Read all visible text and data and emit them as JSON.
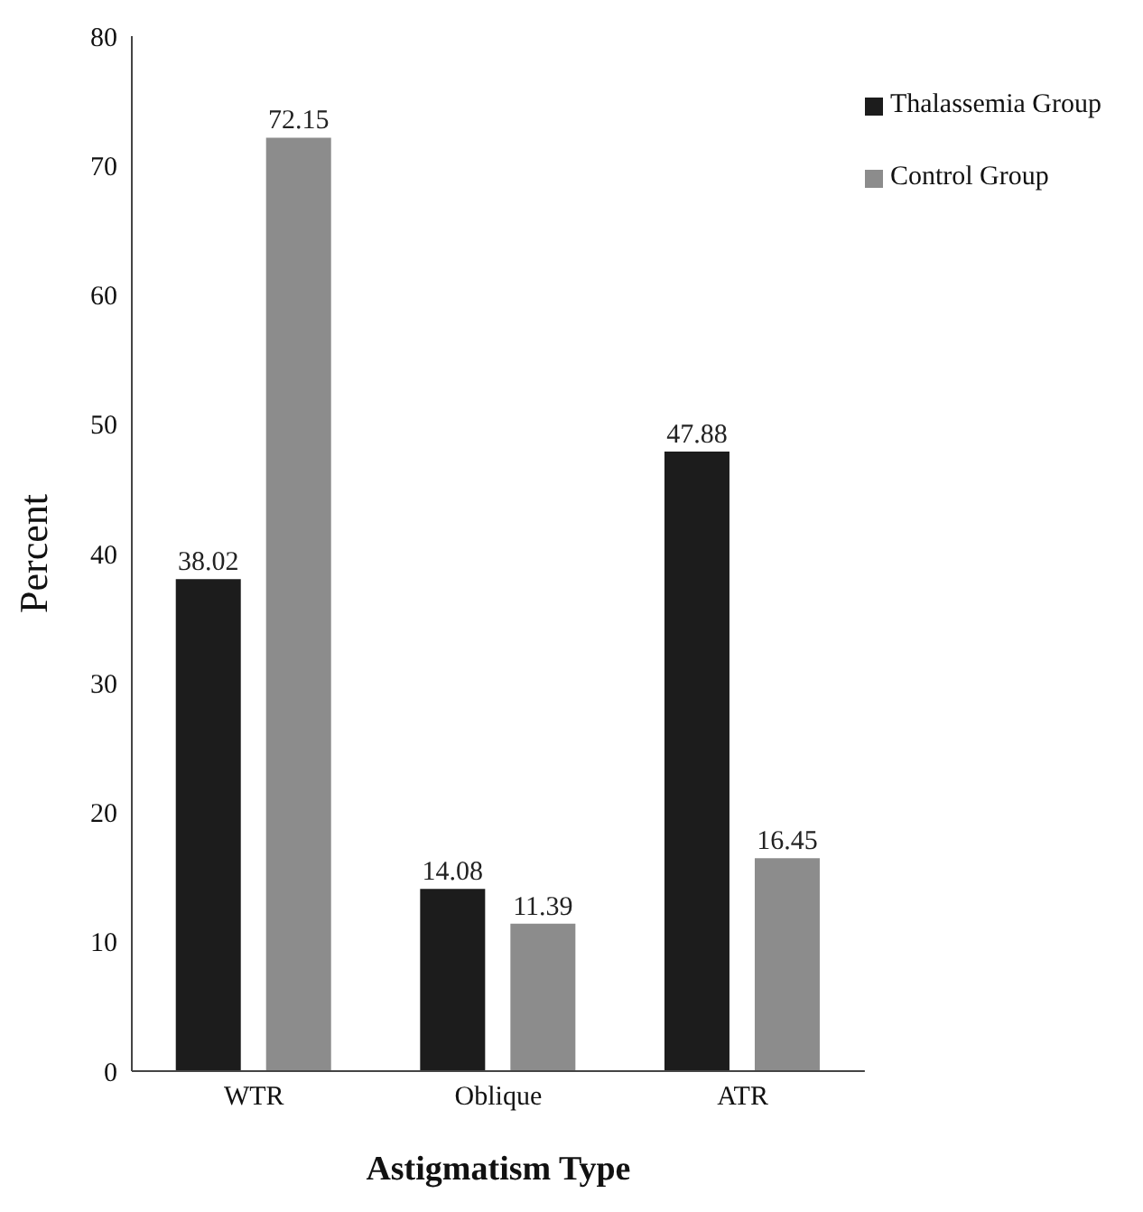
{
  "chart_data": {
    "type": "bar",
    "xlabel": "Astigmatism Type",
    "ylabel": "Percent",
    "categories": [
      "WTR",
      "Oblique",
      "ATR"
    ],
    "series": [
      {
        "name": "Thalassemia Group",
        "color": "#1c1c1c",
        "values": [
          38.02,
          14.08,
          47.88
        ]
      },
      {
        "name": "Control Group",
        "color": "#8c8c8c",
        "values": [
          72.15,
          11.39,
          16.45
        ]
      }
    ],
    "ylim": [
      0,
      80
    ],
    "yticks": [
      0,
      10,
      20,
      30,
      40,
      50,
      60,
      70,
      80
    ],
    "data_labels": true,
    "grid": false,
    "legend": "top right"
  }
}
